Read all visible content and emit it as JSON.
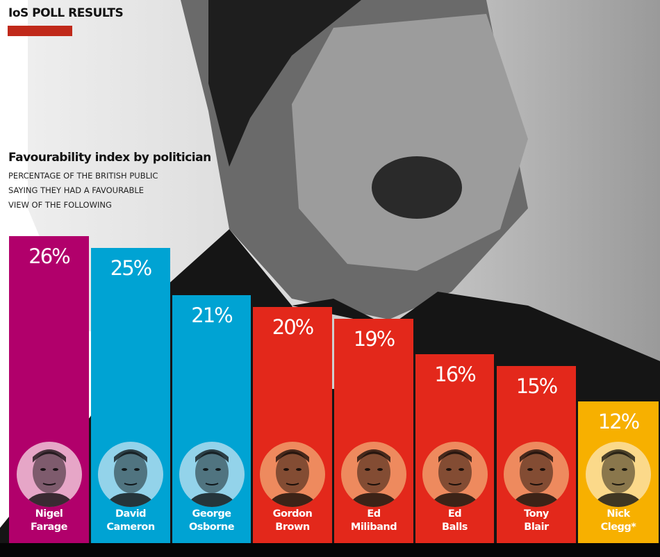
{
  "header": {
    "label": "IoS POLL RESULTS",
    "accent": "#c0291a"
  },
  "chart_data": {
    "type": "bar",
    "title": "Favourability index by politician",
    "subtitle": [
      "PERCENTAGE OF THE BRITISH PUBLIC",
      "SAYING THEY HAD A FAVOURABLE",
      "VIEW OF THE FOLLOWING"
    ],
    "unit": "%",
    "ylim": [
      0,
      26
    ],
    "grid": false,
    "categories": [
      {
        "first": "Nigel",
        "last": "Farage"
      },
      {
        "first": "David",
        "last": "Cameron"
      },
      {
        "first": "George",
        "last": "Osborne"
      },
      {
        "first": "Gordon",
        "last": "Brown"
      },
      {
        "first": "Ed",
        "last": "Miliband"
      },
      {
        "first": "Ed",
        "last": "Balls"
      },
      {
        "first": "Tony",
        "last": "Blair"
      },
      {
        "first": "Nick",
        "last": "Clegg*"
      }
    ],
    "values": [
      26,
      25,
      21,
      20,
      19,
      16,
      15,
      12
    ],
    "labels": [
      "26%",
      "25%",
      "21%",
      "20%",
      "19%",
      "16%",
      "15%",
      "12%"
    ],
    "colors": [
      "#b1006b",
      "#00a3d3",
      "#00a3d3",
      "#e3281b",
      "#e3281b",
      "#e3281b",
      "#e3281b",
      "#f7b000"
    ],
    "photo_tints": [
      "#e6a6c7",
      "#93d3ea",
      "#93d3ea",
      "#ee8a5e",
      "#ee8a5e",
      "#ee8a5e",
      "#ee8a5e",
      "#fbd98a"
    ]
  }
}
